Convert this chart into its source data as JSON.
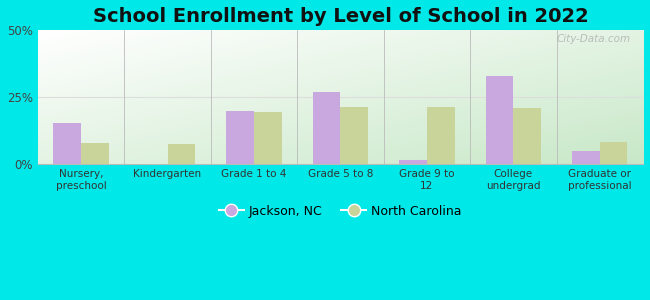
{
  "title": "School Enrollment by Level of School in 2022",
  "categories": [
    "Nursery,\npreschool",
    "Kindergarten",
    "Grade 1 to 4",
    "Grade 5 to 8",
    "Grade 9 to\n12",
    "College\nundergrad",
    "Graduate or\nprofessional"
  ],
  "jackson": [
    15.5,
    0.0,
    20.0,
    27.0,
    1.5,
    33.0,
    5.0
  ],
  "nc": [
    8.0,
    7.5,
    19.5,
    21.5,
    21.5,
    21.0,
    8.5
  ],
  "jackson_color": "#c9a8e0",
  "nc_color": "#c8d49a",
  "background_outer": "#00e8e8",
  "ylim": [
    0,
    50
  ],
  "yticks": [
    0,
    25,
    50
  ],
  "ytick_labels": [
    "0%",
    "25%",
    "50%"
  ],
  "legend_jackson": "Jackson, NC",
  "legend_nc": "North Carolina",
  "watermark": "City-Data.com",
  "title_fontsize": 14,
  "bar_width": 0.32,
  "grid_line_color": "#dddddd",
  "separator_color": "#bbbbbb"
}
